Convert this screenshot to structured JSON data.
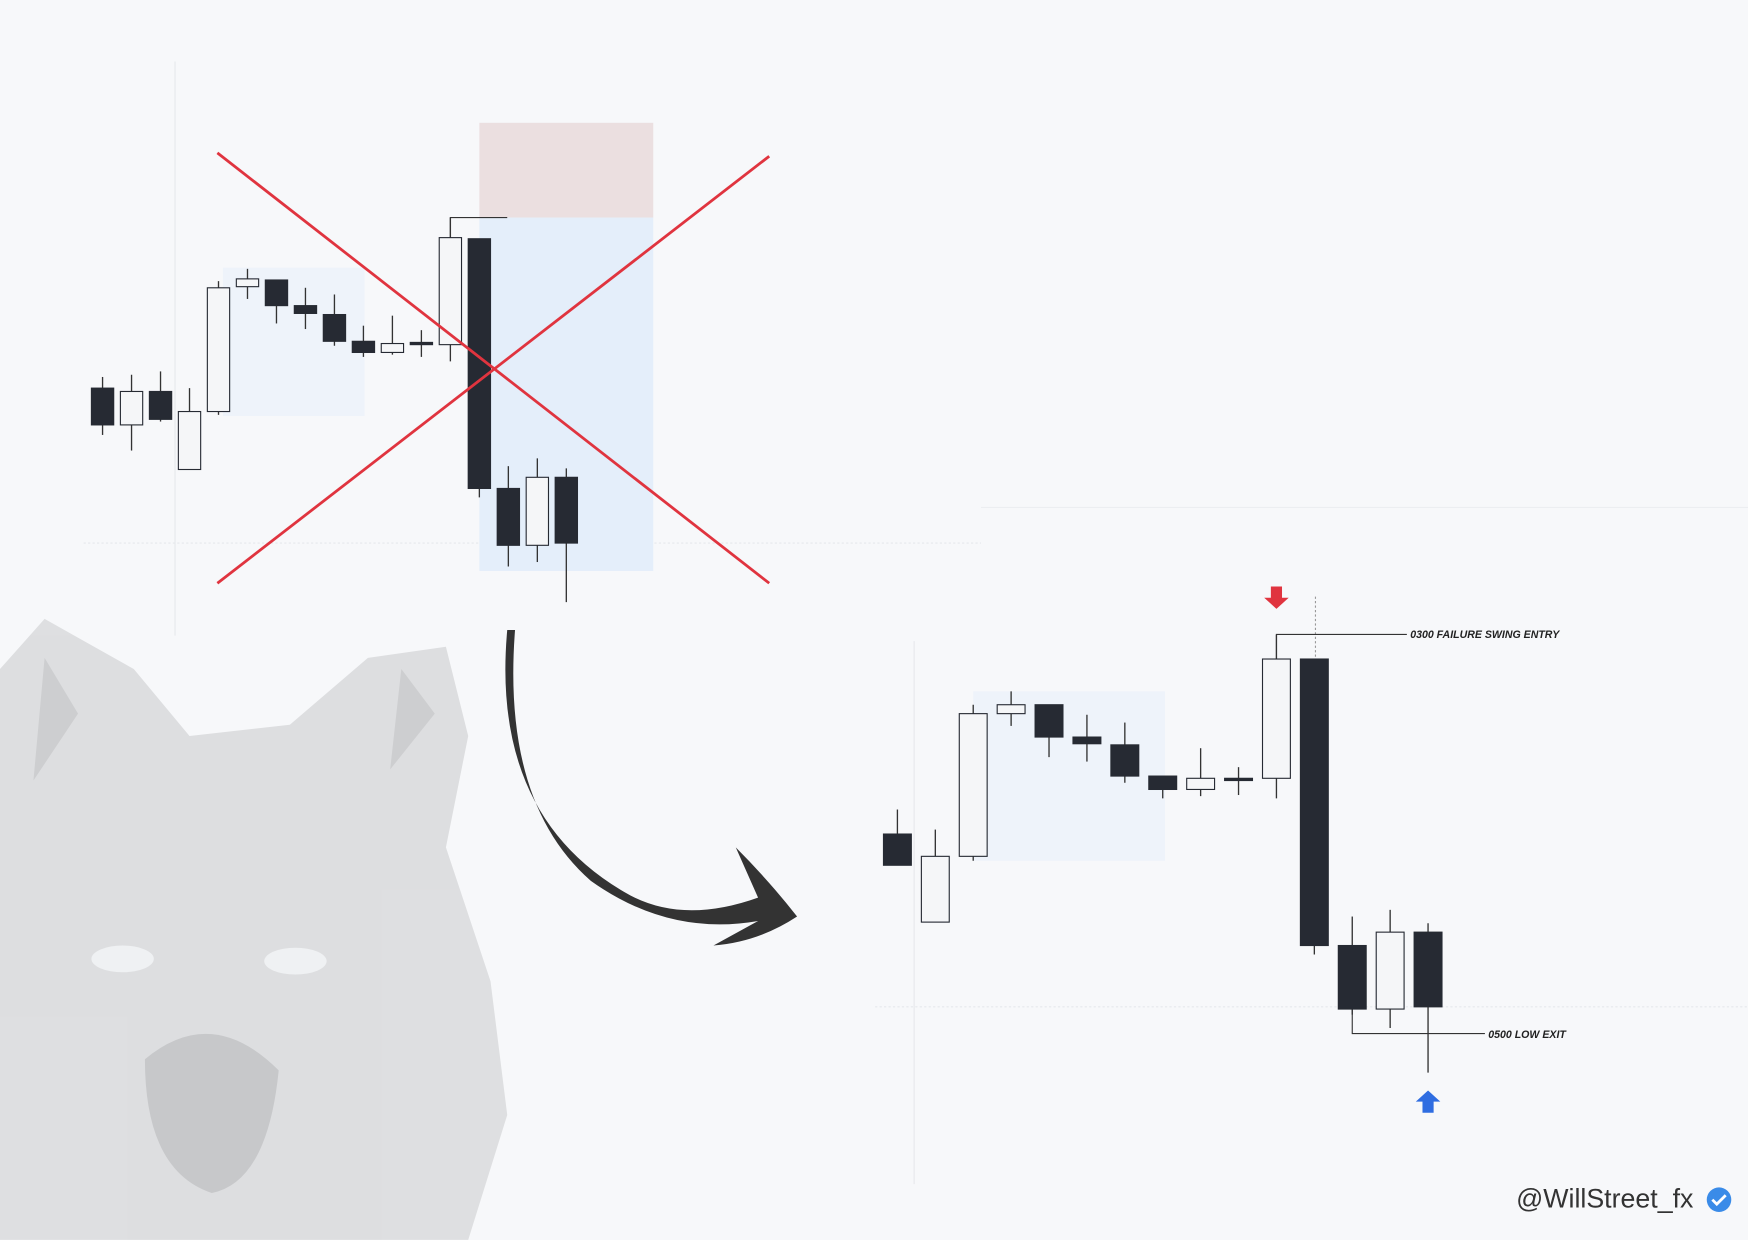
{
  "annotations": {
    "entry": "0300 FAILURE SWING ENTRY",
    "exit": "0500 LOW EXIT"
  },
  "footer": {
    "handle": "@WillStreet_fx"
  }
}
